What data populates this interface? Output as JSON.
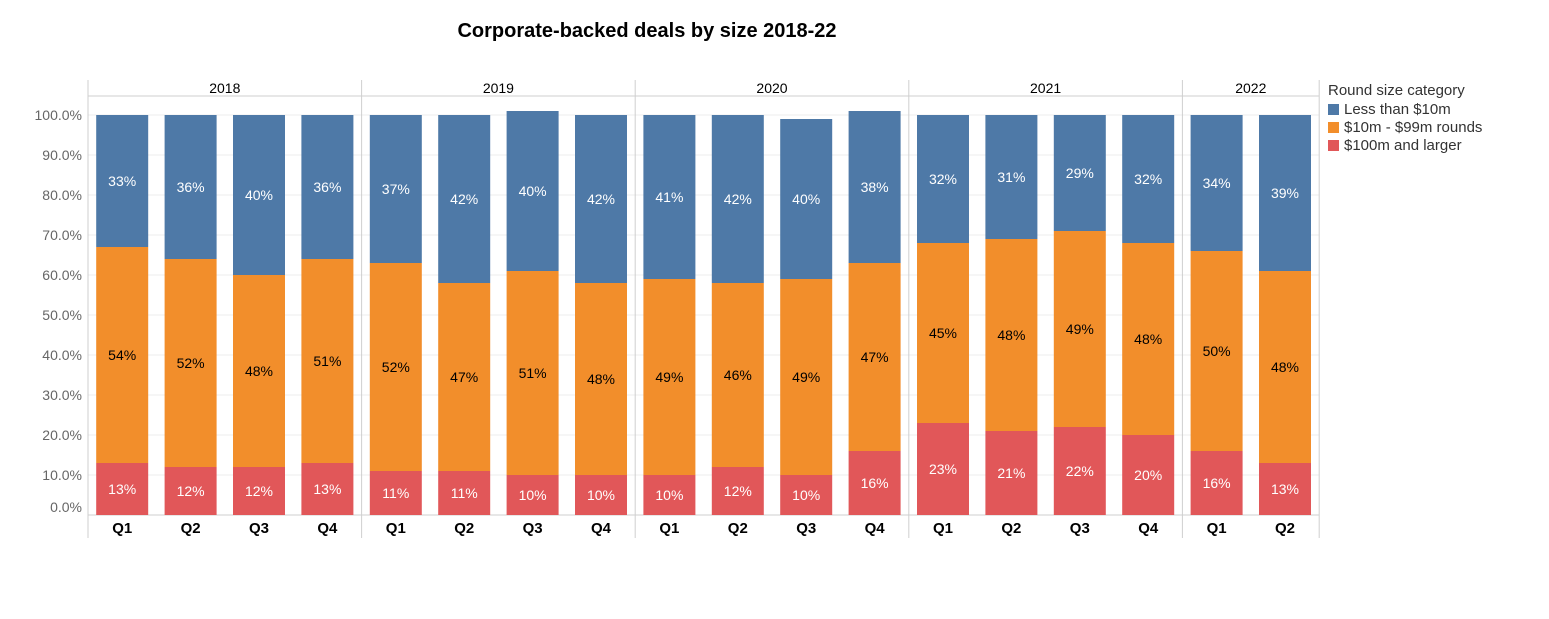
{
  "chart_data": {
    "type": "bar",
    "stacked": true,
    "title": "Corporate-backed deals by size 2018-22",
    "xlabel": "",
    "ylabel": "",
    "ylim": [
      0,
      100
    ],
    "y_ticks": [
      "0.0%",
      "10.0%",
      "20.0%",
      "30.0%",
      "40.0%",
      "50.0%",
      "60.0%",
      "70.0%",
      "80.0%",
      "90.0%",
      "100.0%"
    ],
    "grid": true,
    "legend_position": "right",
    "legend_title": "Round size category",
    "groups": [
      {
        "year": "2018",
        "quarters": [
          "Q1",
          "Q2",
          "Q3",
          "Q4"
        ]
      },
      {
        "year": "2019",
        "quarters": [
          "Q1",
          "Q2",
          "Q3",
          "Q4"
        ]
      },
      {
        "year": "2020",
        "quarters": [
          "Q1",
          "Q2",
          "Q3",
          "Q4"
        ]
      },
      {
        "year": "2021",
        "quarters": [
          "Q1",
          "Q2",
          "Q3",
          "Q4"
        ]
      },
      {
        "year": "2022",
        "quarters": [
          "Q1",
          "Q2"
        ]
      }
    ],
    "series": [
      {
        "name": "$100m and larger",
        "color": "#e15759",
        "label_color": "#ffffff",
        "values": [
          13,
          12,
          12,
          13,
          11,
          11,
          10,
          10,
          10,
          12,
          10,
          16,
          23,
          21,
          22,
          20,
          16,
          13
        ]
      },
      {
        "name": "$10m - $99m rounds",
        "color": "#f28e2b",
        "label_color": "#000000",
        "values": [
          54,
          52,
          48,
          51,
          52,
          47,
          51,
          48,
          49,
          46,
          49,
          47,
          45,
          48,
          49,
          48,
          50,
          48
        ]
      },
      {
        "name": "Less than $10m",
        "color": "#4e79a7",
        "label_color": "#ffffff",
        "values": [
          33,
          36,
          40,
          36,
          37,
          42,
          40,
          42,
          41,
          42,
          40,
          38,
          32,
          31,
          29,
          32,
          34,
          39
        ]
      }
    ],
    "legend_order": [
      "Less than $10m",
      "$10m - $99m rounds",
      "$100m and larger"
    ]
  }
}
